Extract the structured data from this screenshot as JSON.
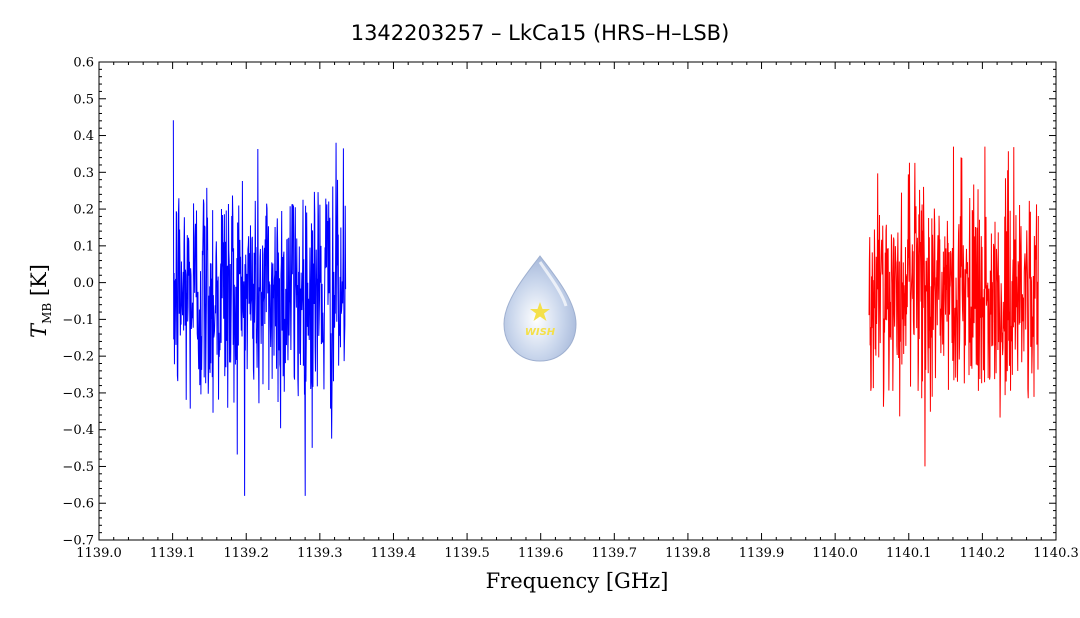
{
  "chart_data": {
    "type": "line",
    "title": "1342203257 – LkCa15 (HRS–H–LSB)",
    "xlabel": "Frequency [GHz]",
    "ylabel": {
      "symbol": "T",
      "subscript": "MB",
      "unit": "[K]"
    },
    "xlim": [
      1139.0,
      1140.3
    ],
    "ylim": [
      -0.7,
      0.6
    ],
    "x_ticks": [
      "1139.0",
      "1139.1",
      "1139.2",
      "1139.3",
      "1139.4",
      "1139.5",
      "1139.6",
      "1139.7",
      "1139.8",
      "1139.9",
      "1140.0",
      "1140.1",
      "1140.2",
      "1140.3"
    ],
    "y_ticks": [
      "0.6",
      "0.5",
      "0.4",
      "0.3",
      "0.2",
      "0.1",
      "0.0",
      "−0.1",
      "−0.2",
      "−0.3",
      "−0.4",
      "−0.5",
      "−0.6",
      "−0.7"
    ],
    "grid": false,
    "series": [
      {
        "color": "#0000ff",
        "x_range": [
          1139.101,
          1139.335
        ],
        "approx_min": -0.58,
        "approx_max": 0.47,
        "noise_rms": 0.17
      },
      {
        "color": "#ff0000",
        "x_range": [
          1140.046,
          1140.276
        ],
        "approx_min": -0.52,
        "approx_max": 0.37,
        "noise_rms": 0.15
      }
    ]
  },
  "logo": {
    "text": "WISH"
  }
}
